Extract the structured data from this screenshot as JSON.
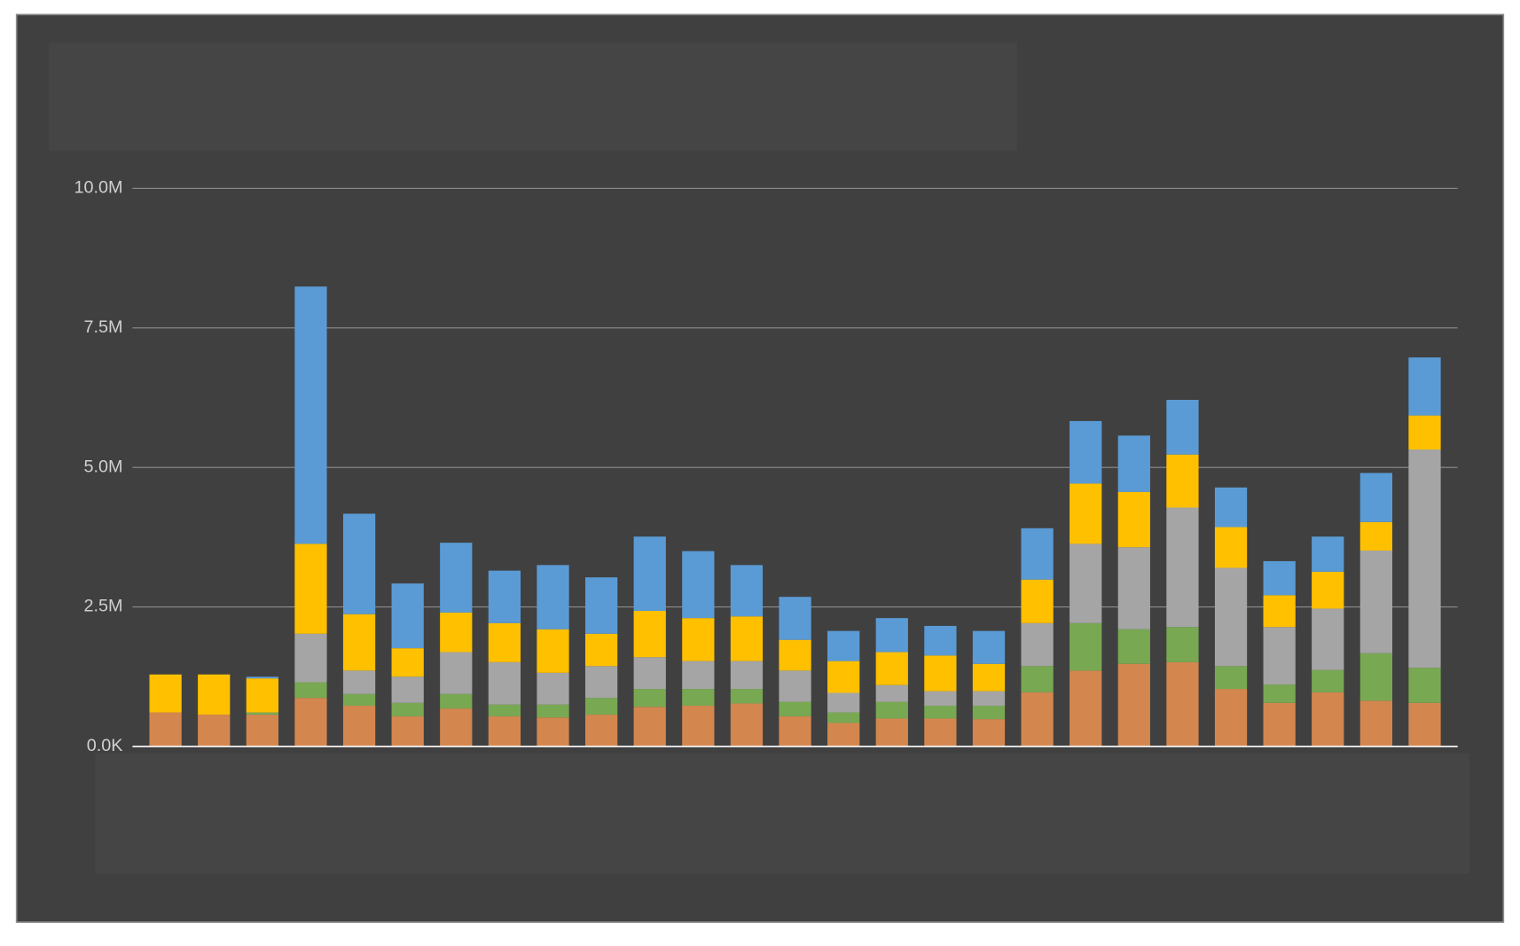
{
  "chart_data": {
    "type": "stacked_bar",
    "categories": [
      null,
      null,
      null,
      null,
      null,
      null,
      null,
      null,
      null,
      null,
      null,
      null,
      null,
      null,
      null,
      null,
      null,
      null,
      null,
      null,
      null,
      null,
      null,
      null,
      null,
      null,
      null
    ],
    "series": [
      {
        "color": "#d3874f",
        "values": [
          610000,
          570000,
          570000,
          870000,
          730000,
          540000,
          680000,
          540000,
          520000,
          570000,
          710000,
          730000,
          770000,
          540000,
          420000,
          500000,
          500000,
          490000,
          970000,
          1360000,
          1480000,
          1510000,
          1030000,
          780000,
          970000,
          820000,
          780000
        ]
      },
      {
        "color": "#79a853",
        "values": [
          0,
          0,
          40000,
          280000,
          210000,
          240000,
          260000,
          210000,
          230000,
          300000,
          320000,
          300000,
          260000,
          260000,
          190000,
          300000,
          230000,
          240000,
          470000,
          850000,
          620000,
          630000,
          410000,
          330000,
          400000,
          850000,
          630000
        ]
      },
      {
        "color": "#a5a5a5",
        "values": [
          0,
          0,
          0,
          870000,
          420000,
          470000,
          750000,
          760000,
          570000,
          570000,
          570000,
          500000,
          500000,
          560000,
          350000,
          300000,
          260000,
          260000,
          770000,
          1420000,
          1470000,
          2140000,
          1760000,
          1030000,
          1100000,
          1840000,
          3910000
        ]
      },
      {
        "color": "#ffc000",
        "values": [
          680000,
          720000,
          610000,
          1610000,
          1010000,
          510000,
          710000,
          700000,
          780000,
          580000,
          830000,
          770000,
          800000,
          550000,
          570000,
          590000,
          640000,
          490000,
          780000,
          1080000,
          990000,
          950000,
          730000,
          570000,
          660000,
          510000,
          610000
        ]
      },
      {
        "color": "#5b9bd5",
        "values": [
          0,
          0,
          30000,
          4610000,
          1800000,
          1160000,
          1250000,
          940000,
          1150000,
          1010000,
          1330000,
          1200000,
          920000,
          770000,
          540000,
          610000,
          530000,
          590000,
          920000,
          1120000,
          1010000,
          980000,
          710000,
          610000,
          630000,
          880000,
          1040000
        ]
      }
    ],
    "ylim": [
      0,
      10000000
    ],
    "yticks": [
      {
        "value": 0,
        "label": "0.0K"
      },
      {
        "value": 2500000,
        "label": "2.5M"
      },
      {
        "value": 5000000,
        "label": "5.0M"
      },
      {
        "value": 7500000,
        "label": "7.5M"
      },
      {
        "value": 10000000,
        "label": "10.0M"
      }
    ],
    "grid": true
  }
}
